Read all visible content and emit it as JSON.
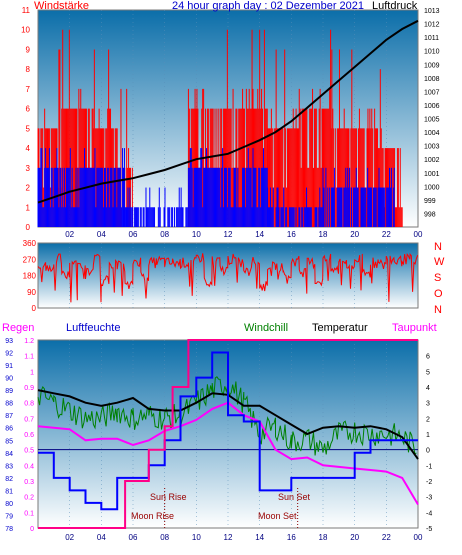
{
  "header": {
    "left_label": "Windstärke",
    "title": "24 hour graph day : 02 Dezember 2021",
    "right_label": "Luftdruck"
  },
  "legend": {
    "regen": "Regen",
    "luftfeuchte": "Luftfeuchte",
    "windchill": "Windchill",
    "temperatur": "Temperatur",
    "taupunkt": "Taupunkt"
  },
  "events": {
    "sun_rise": "Sun Rise",
    "sun_set": "Sun Set",
    "moon_rise": "Moon Rise",
    "moon_set": "Moon Set"
  },
  "compass": [
    "N",
    "W",
    "S",
    "O",
    "N"
  ],
  "colors": {
    "wind_gust": "#ff0000",
    "wind_avg": "#0000ff",
    "pressure": "#000000",
    "temperature": "#000000",
    "windchill": "#008000",
    "dewpoint": "#ff00ff",
    "humidity": "#0000ff",
    "rain": "#ff0088",
    "background_top": "#0b6ea9",
    "background_bottom": "#ffffff"
  },
  "chart_data": [
    {
      "type": "bar",
      "name": "wind",
      "x_ticks": [
        "02",
        "04",
        "06",
        "08",
        "10",
        "12",
        "14",
        "16",
        "18",
        "20",
        "22",
        "00"
      ],
      "wind_ylim": [
        0,
        11
      ],
      "wind_ticks": [
        0,
        1,
        2,
        3,
        4,
        5,
        6,
        7,
        8,
        9,
        10,
        11
      ],
      "pressure_ylim": [
        997,
        1013
      ],
      "pressure_ticks": [
        998,
        999,
        1000,
        1001,
        1002,
        1003,
        1004,
        1005,
        1006,
        1007,
        1008,
        1009,
        1010,
        1011,
        1012,
        1013
      ],
      "gust_segments": [
        {
          "start": 0.0,
          "end": 1.5,
          "level": 5
        },
        {
          "start": 1.5,
          "end": 3.5,
          "level": 6
        },
        {
          "start": 3.5,
          "end": 5.0,
          "level": 5
        },
        {
          "start": 5.0,
          "end": 6.0,
          "level": 3
        },
        {
          "start": 6.0,
          "end": 9.5,
          "level": 0
        },
        {
          "start": 9.5,
          "end": 14.5,
          "level": 6
        },
        {
          "start": 14.5,
          "end": 16.5,
          "level": 5
        },
        {
          "start": 16.5,
          "end": 18.5,
          "level": 6
        },
        {
          "start": 18.5,
          "end": 21.5,
          "level": 5
        },
        {
          "start": 21.5,
          "end": 23.0,
          "level": 4
        },
        {
          "start": 23.0,
          "end": 24.0,
          "level": 0
        }
      ],
      "avg_segments": [
        {
          "start": 0.0,
          "end": 5.5,
          "level": 3
        },
        {
          "start": 5.5,
          "end": 9.5,
          "level": 1
        },
        {
          "start": 9.5,
          "end": 14.5,
          "level": 3
        },
        {
          "start": 14.5,
          "end": 18.0,
          "level": 1
        },
        {
          "start": 18.0,
          "end": 22.5,
          "level": 2
        },
        {
          "start": 22.5,
          "end": 24.0,
          "level": 0
        }
      ],
      "pressure": {
        "x": [
          0,
          1,
          2,
          3,
          4,
          5,
          6,
          7,
          8,
          9,
          10,
          11,
          12,
          13,
          14,
          15,
          16,
          17,
          18,
          19,
          20,
          21,
          22,
          23,
          24
        ],
        "values": [
          998.8,
          999.2,
          999.6,
          999.9,
          1000.2,
          1000.4,
          1000.6,
          1000.9,
          1001.2,
          1001.6,
          1002.0,
          1002.2,
          1002.4,
          1002.9,
          1003.4,
          1004.0,
          1004.8,
          1005.8,
          1006.8,
          1007.8,
          1008.8,
          1009.8,
          1010.8,
          1011.6,
          1012.2
        ]
      }
    },
    {
      "type": "line",
      "name": "wind_direction",
      "ylim": [
        0,
        360
      ],
      "ticks": [
        0,
        30,
        60,
        90,
        120,
        150,
        180,
        210,
        240,
        270,
        300,
        330,
        360
      ],
      "x": [
        0,
        0.5,
        1,
        1.5,
        2,
        2.5,
        3,
        3.5,
        4,
        4.5,
        5,
        5.5,
        6,
        6.5,
        7,
        7.5,
        8,
        8.5,
        9,
        9.5,
        10,
        10.5,
        11,
        11.5,
        12,
        12.5,
        13,
        13.5,
        14,
        14.5,
        15,
        15.5,
        16,
        16.5,
        17,
        17.5,
        18,
        18.5,
        19,
        19.5,
        20,
        20.5,
        21,
        21.5,
        22,
        22.5,
        23,
        23.5,
        24
      ],
      "values": [
        250,
        220,
        270,
        180,
        260,
        240,
        200,
        270,
        150,
        250,
        230,
        120,
        260,
        180,
        250,
        260,
        250,
        250,
        250,
        250,
        280,
        150,
        260,
        210,
        270,
        250,
        200,
        260,
        120,
        240,
        230,
        180,
        260,
        200,
        250,
        150,
        270,
        210,
        260,
        230,
        270,
        190,
        250,
        240,
        270,
        260,
        270,
        270,
        270
      ]
    },
    {
      "type": "line",
      "name": "temperature_humidity",
      "humidity_ylim": [
        78,
        93
      ],
      "humidity_ticks": [
        78,
        79,
        80,
        81,
        82,
        83,
        84,
        85,
        86,
        87,
        88,
        89,
        90,
        91,
        92,
        93
      ],
      "rain_ylim": [
        0,
        1.2
      ],
      "rain_ticks": [
        0,
        0.1,
        0.2,
        0.3,
        0.4,
        0.5,
        0.6,
        0.7,
        0.8,
        0.9,
        1,
        1.1,
        1.2
      ],
      "temp_ylim": [
        -5,
        7
      ],
      "temp_ticks": [
        -5,
        -4,
        -3,
        -2,
        -1,
        0,
        1,
        2,
        3,
        4,
        5,
        6
      ],
      "x_ticks": [
        "02",
        "04",
        "06",
        "08",
        "10",
        "12",
        "14",
        "16",
        "18",
        "20",
        "22",
        "00"
      ],
      "x": [
        0,
        1,
        2,
        3,
        4,
        5,
        6,
        7,
        8,
        9,
        10,
        11,
        12,
        13,
        14,
        15,
        16,
        17,
        18,
        19,
        20,
        21,
        22,
        23,
        24
      ],
      "temperature": [
        3.8,
        3.6,
        3.4,
        3.0,
        2.8,
        3.0,
        3.3,
        2.6,
        2.5,
        2.5,
        3.0,
        3.6,
        3.5,
        2.8,
        2.8,
        2.2,
        1.6,
        1.0,
        1.4,
        1.5,
        1.4,
        1.5,
        1.3,
        0.8,
        -0.6
      ],
      "windchill": [
        3.5,
        3.0,
        2.5,
        2.0,
        2.0,
        2.5,
        2.0,
        2.2,
        2.0,
        2.2,
        3.0,
        3.8,
        4.3,
        3.0,
        1.0,
        1.5,
        0.5,
        0.7,
        0.0,
        1.0,
        1.2,
        1.0,
        1.0,
        0.8,
        0.0
      ],
      "dewpoint": [
        1.5,
        1.4,
        1.3,
        0.6,
        0.7,
        0.7,
        0.3,
        0.6,
        1.2,
        1.5,
        1.9,
        2.6,
        3.0,
        2.2,
        1.8,
        0.0,
        -0.6,
        -0.5,
        -1.0,
        -1.1,
        -1.2,
        -1.3,
        -1.4,
        -1.8,
        -3.5
      ],
      "humidity": [
        84,
        82,
        81,
        80,
        79.5,
        82,
        82,
        83,
        85,
        88.5,
        90,
        92,
        87,
        86.5,
        81,
        81,
        82,
        82,
        82,
        82,
        84,
        85,
        85,
        85,
        85
      ],
      "rain_steps": [
        {
          "start": 0.0,
          "end": 5.5,
          "value": 0.0
        },
        {
          "start": 5.5,
          "end": 7.0,
          "value": 0.3
        },
        {
          "start": 7.0,
          "end": 8.0,
          "value": 0.5
        },
        {
          "start": 8.0,
          "end": 8.5,
          "value": 0.65
        },
        {
          "start": 8.5,
          "end": 9.5,
          "value": 0.9
        },
        {
          "start": 9.5,
          "end": 24.0,
          "value": 1.2
        }
      ],
      "event_times": {
        "sun_rise": 8.0,
        "sun_set": 16.4,
        "moon_rise": 5.2,
        "moon_set": 16.4
      }
    }
  ]
}
